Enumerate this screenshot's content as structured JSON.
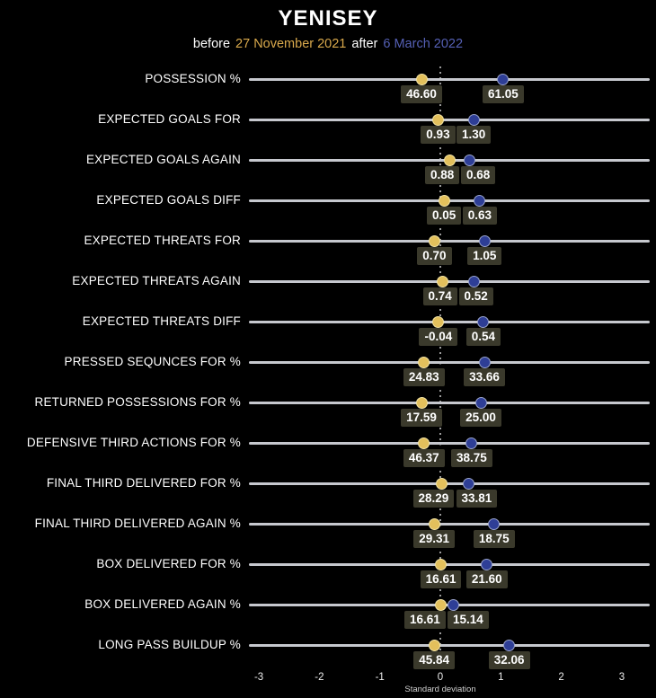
{
  "title": "YENISEY",
  "subtitle": {
    "before_label": "before",
    "before_value": "27 November 2021",
    "after_label": "after",
    "after_value": "6 March 2022"
  },
  "colors": {
    "background": "#000000",
    "before_dot": "#e3c05c",
    "before_dot_border": "#f2e3a4",
    "after_dot": "#2e3e96",
    "after_dot_border": "#9aa4cc",
    "row_line": "#c6c8ce",
    "value_box_bg": "#3a392b",
    "subtitle_before": "#d9a94c",
    "subtitle_after": "#5560b5",
    "text": "#ffffff"
  },
  "chart_data": {
    "type": "dumbbell-dot",
    "title": "YENISEY",
    "xlabel": "Standard deviation",
    "x_ticks": [
      "-3",
      "-2",
      "-1",
      "0",
      "1",
      "2",
      "3"
    ],
    "xlim": [
      -3.2,
      3.55
    ],
    "grid": "center-dotted-line-only",
    "legend_position": "subtitle-inline",
    "series": [
      {
        "name": "before 27 November 2021",
        "color": "#e3c05c"
      },
      {
        "name": "after 6 March 2022",
        "color": "#2e3e96"
      }
    ],
    "rows": [
      {
        "label": "POSSESSION %",
        "before": "46.60",
        "after": "61.05",
        "before_sd": -0.31,
        "after_sd": 1.04
      },
      {
        "label": "EXPECTED GOALS FOR",
        "before": "0.93",
        "after": "1.30",
        "before_sd": -0.04,
        "after_sd": 0.55
      },
      {
        "label": "EXPECTED GOALS AGAIN",
        "before": "0.88",
        "after": "0.68",
        "before_sd": 0.16,
        "after_sd": 0.49
      },
      {
        "label": "EXPECTED GOALS DIFF",
        "before": "0.05",
        "after": "0.63",
        "before_sd": 0.06,
        "after_sd": 0.65
      },
      {
        "label": "EXPECTED THREATS FOR",
        "before": "0.70",
        "after": "1.05",
        "before_sd": -0.1,
        "after_sd": 0.73
      },
      {
        "label": "EXPECTED THREATS AGAIN",
        "before": "0.74",
        "after": "0.52",
        "before_sd": 0.03,
        "after_sd": 0.55
      },
      {
        "label": "EXPECTED THREATS DIFF",
        "before": "-0.04",
        "after": "0.54",
        "before_sd": -0.03,
        "after_sd": 0.71
      },
      {
        "label": "PRESSED SEQUNCES FOR %",
        "before": "24.83",
        "after": "33.66",
        "before_sd": -0.27,
        "after_sd": 0.73
      },
      {
        "label": "RETURNED POSSESSIONS FOR %",
        "before": "17.59",
        "after": "25.00",
        "before_sd": -0.31,
        "after_sd": 0.67
      },
      {
        "label": "DEFENSIVE THIRD ACTIONS FOR %",
        "before": "46.37",
        "after": "38.75",
        "before_sd": -0.27,
        "after_sd": 0.52
      },
      {
        "label": "FINAL THIRD DELIVERED FOR %",
        "before": "28.29",
        "after": "33.81",
        "before_sd": 0.02,
        "after_sd": 0.47
      },
      {
        "label": "FINAL THIRD DELIVERED AGAIN %",
        "before": "29.31",
        "after": "18.75",
        "before_sd": -0.1,
        "after_sd": 0.89
      },
      {
        "label": "BOX DELIVERED FOR %",
        "before": "16.61",
        "after": "21.60",
        "before_sd": 0.01,
        "after_sd": 0.77
      },
      {
        "label": "BOX DELIVERED AGAIN %",
        "before": "16.61",
        "after": "15.14",
        "before_sd": 0.0,
        "after_sd": 0.21
      },
      {
        "label": "LONG PASS BUILDUP %",
        "before": "45.84",
        "after": "32.06",
        "before_sd": -0.1,
        "after_sd": 1.14
      }
    ]
  }
}
